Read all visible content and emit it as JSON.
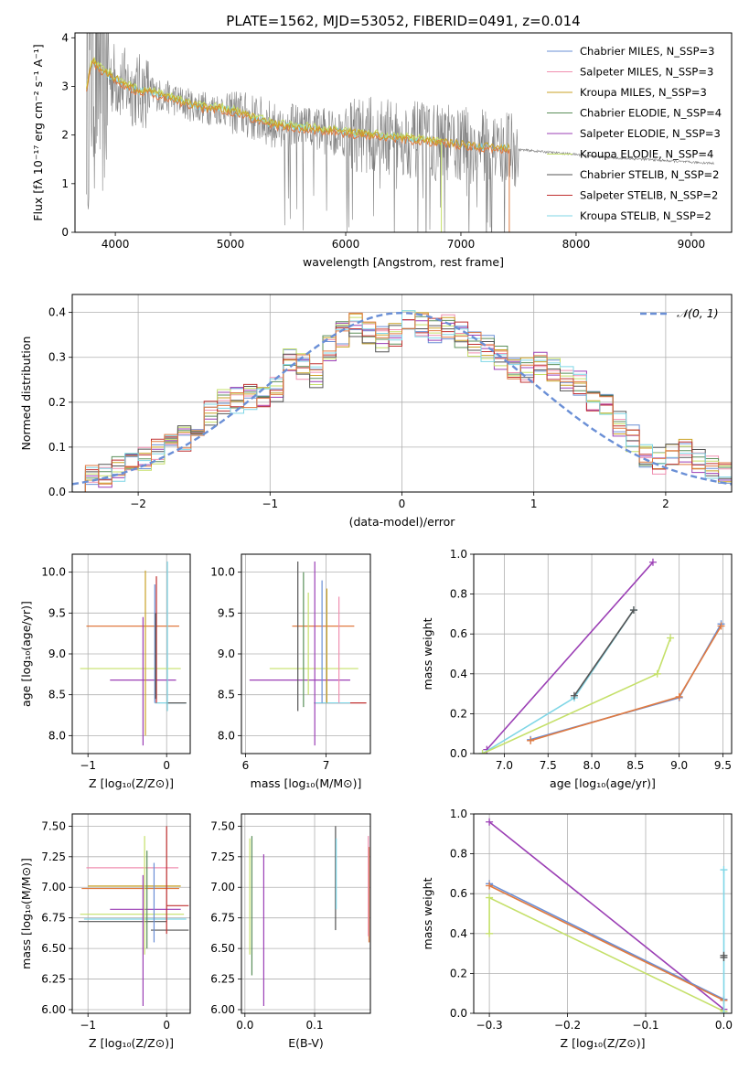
{
  "colors": {
    "c0": "#6a8fd6",
    "c1": "#f08fb0",
    "c2": "#c9a226",
    "c3": "#5b8f5a",
    "c4": "#9b3fb5",
    "c5": "#c5e06a",
    "c6": "#555555",
    "c7": "#c03030",
    "c8": "#7fd6e6",
    "data": "#808080",
    "gauss": "#6a8fd6",
    "orange": "#e07a40"
  },
  "chart_data": [
    {
      "id": "spectrum",
      "type": "line",
      "title": "PLATE=1562, MJD=53052, FIBERID=0491, z=0.014",
      "xlabel": "wavelength [Angstrom, rest frame]",
      "ylabel": "Flux [fλ 10⁻¹⁷ erg cm⁻² s⁻¹ A⁻¹]",
      "xlim": [
        3650,
        9350
      ],
      "ylim": [
        0,
        4.1
      ],
      "xticks": [
        4000,
        5000,
        6000,
        7000,
        8000,
        9000
      ],
      "yticks": [
        0,
        1,
        2,
        3,
        4
      ],
      "legend_position": "top-right",
      "legend": [
        {
          "label": "Chabrier MILES, N_SSP=3",
          "color": "c0"
        },
        {
          "label": "Salpeter MILES, N_SSP=3",
          "color": "c1"
        },
        {
          "label": "Kroupa MILES, N_SSP=3",
          "color": "c2"
        },
        {
          "label": "Chabrier ELODIE, N_SSP=4",
          "color": "c3"
        },
        {
          "label": "Salpeter ELODIE, N_SSP=3",
          "color": "c4"
        },
        {
          "label": "Kroupa ELODIE, N_SSP=4",
          "color": "c5"
        },
        {
          "label": "Chabrier STELIB, N_SSP=2",
          "color": "c6"
        },
        {
          "label": "Salpeter STELIB, N_SSP=2",
          "color": "c7"
        },
        {
          "label": "Kroupa STELIB, N_SSP=2",
          "color": "c8"
        }
      ],
      "continuum": [
        [
          3750,
          3.0
        ],
        [
          3800,
          3.5
        ],
        [
          3900,
          3.3
        ],
        [
          4000,
          3.15
        ],
        [
          4100,
          3.0
        ],
        [
          4200,
          2.9
        ],
        [
          4300,
          2.9
        ],
        [
          4400,
          2.8
        ],
        [
          4500,
          2.75
        ],
        [
          4600,
          2.65
        ],
        [
          4700,
          2.6
        ],
        [
          4800,
          2.55
        ],
        [
          4900,
          2.55
        ],
        [
          5000,
          2.5
        ],
        [
          5200,
          2.35
        ],
        [
          5400,
          2.2
        ],
        [
          5600,
          2.15
        ],
        [
          5800,
          2.1
        ],
        [
          6000,
          2.05
        ],
        [
          6200,
          2.0
        ],
        [
          6400,
          1.95
        ],
        [
          6600,
          1.9
        ],
        [
          6800,
          1.85
        ],
        [
          7000,
          1.8
        ],
        [
          7200,
          1.75
        ],
        [
          7400,
          1.72
        ],
        [
          7600,
          1.68
        ],
        [
          7800,
          1.64
        ],
        [
          8000,
          1.6
        ],
        [
          8200,
          1.55
        ],
        [
          8400,
          1.52
        ],
        [
          8600,
          1.5
        ],
        [
          8800,
          1.47
        ],
        [
          9000,
          1.44
        ],
        [
          9200,
          1.42
        ]
      ]
    },
    {
      "id": "residuals",
      "type": "line",
      "xlabel": "(data-model)/error",
      "ylabel": "Normed distribution",
      "xlim": [
        -2.5,
        2.5
      ],
      "ylim": [
        0,
        0.44
      ],
      "xticks": [
        -2,
        -1,
        0,
        1,
        2
      ],
      "yticks": [
        0.0,
        0.1,
        0.2,
        0.3,
        0.4
      ],
      "grid": true,
      "legend_position": "top-right",
      "legend": [
        {
          "label": "𝒩(0, 1)",
          "color": "gauss"
        }
      ],
      "hist_bins": [
        -2.5,
        2.5,
        50
      ],
      "hist_base": [
        0.02,
        0.03,
        0.04,
        0.05,
        0.06,
        0.075,
        0.09,
        0.1,
        0.12,
        0.145,
        0.175,
        0.2,
        0.205,
        0.21,
        0.22,
        0.23,
        0.3,
        0.28,
        0.26,
        0.32,
        0.35,
        0.37,
        0.36,
        0.34,
        0.35,
        0.38,
        0.37,
        0.36,
        0.37,
        0.35,
        0.33,
        0.32,
        0.3,
        0.28,
        0.27,
        0.29,
        0.27,
        0.25,
        0.24,
        0.2,
        0.19,
        0.15,
        0.12,
        0.08,
        0.07,
        0.085,
        0.09,
        0.07,
        0.05,
        0.045
      ]
    },
    {
      "id": "age-vs-Z",
      "type": "scatter",
      "xlabel": "Z [log₁₀(Z/Z⊙)]",
      "ylabel": "age  [log₁₀(age/yr)]",
      "xlim": [
        -1.2,
        0.3
      ],
      "ylim": [
        7.78,
        10.22
      ],
      "xticks": [
        -1,
        0
      ],
      "yticks": [
        8.0,
        8.5,
        9.0,
        9.5,
        10.0
      ],
      "grid": true,
      "hbars": [
        {
          "y": 9.34,
          "x0": -1.02,
          "x1": 0.16,
          "color": "orange"
        },
        {
          "y": 8.82,
          "x0": -1.1,
          "x1": 0.18,
          "color": "c5"
        },
        {
          "y": 8.4,
          "x0": -0.15,
          "x1": 0.25,
          "color": "c8"
        },
        {
          "y": 8.68,
          "x0": -0.72,
          "x1": 0.12,
          "color": "c4"
        },
        {
          "y": 8.4,
          "x0": 0.0,
          "x1": 0.25,
          "color": "c6"
        }
      ],
      "vbars": [
        {
          "x": -0.3,
          "y0": 7.88,
          "y1": 9.45,
          "color": "c4"
        },
        {
          "x": -0.27,
          "y0": 8.0,
          "y1": 10.02,
          "color": "c2"
        },
        {
          "x": -0.15,
          "y0": 8.4,
          "y1": 9.85,
          "color": "c0"
        },
        {
          "x": -0.13,
          "y0": 8.4,
          "y1": 9.95,
          "color": "c7"
        },
        {
          "x": 0.01,
          "y0": 8.3,
          "y1": 10.13,
          "color": "c8"
        },
        {
          "x": -0.14,
          "y0": 8.45,
          "y1": 9.5,
          "color": "c6"
        }
      ]
    },
    {
      "id": "age-vs-mass",
      "type": "scatter",
      "xlabel": "mass [log₁₀(M/M⊙)]",
      "ylabel": "",
      "xlim": [
        5.95,
        7.55
      ],
      "ylim": [
        7.78,
        10.22
      ],
      "xticks": [
        6,
        7
      ],
      "yticks": [
        8.0,
        8.5,
        9.0,
        9.5,
        10.0
      ],
      "grid": true,
      "hbars": [
        {
          "y": 9.34,
          "x0": 6.58,
          "x1": 7.35,
          "color": "orange"
        },
        {
          "y": 8.82,
          "x0": 6.3,
          "x1": 7.4,
          "color": "c5"
        },
        {
          "y": 8.68,
          "x0": 6.05,
          "x1": 7.3,
          "color": "c4"
        },
        {
          "y": 8.4,
          "x0": 6.85,
          "x1": 7.5,
          "color": "c7"
        },
        {
          "y": 8.4,
          "x0": 6.85,
          "x1": 7.3,
          "color": "c8"
        }
      ],
      "vbars": [
        {
          "x": 6.65,
          "y0": 8.3,
          "y1": 10.13,
          "color": "c6"
        },
        {
          "x": 6.72,
          "y0": 8.35,
          "y1": 10.0,
          "color": "c3"
        },
        {
          "x": 6.78,
          "y0": 8.5,
          "y1": 9.75,
          "color": "c5"
        },
        {
          "x": 6.86,
          "y0": 7.88,
          "y1": 10.13,
          "color": "c4"
        },
        {
          "x": 6.95,
          "y0": 8.4,
          "y1": 9.9,
          "color": "c0"
        },
        {
          "x": 7.01,
          "y0": 8.4,
          "y1": 9.8,
          "color": "c2"
        },
        {
          "x": 7.16,
          "y0": 8.4,
          "y1": 9.7,
          "color": "c1"
        }
      ]
    },
    {
      "id": "mass-weight-vs-age",
      "type": "line",
      "xlabel": "age  [log₁₀(age/yr)]",
      "ylabel": "mass weight",
      "xlim": [
        6.65,
        9.6
      ],
      "ylim": [
        0,
        1.0
      ],
      "xticks": [
        7.0,
        7.5,
        8.0,
        8.5,
        9.0,
        9.5
      ],
      "yticks": [
        0.0,
        0.2,
        0.4,
        0.6,
        0.8,
        1.0
      ],
      "grid": true,
      "series": [
        {
          "color": "c4",
          "x": [
            6.8,
            8.7
          ],
          "y": [
            0.02,
            0.96
          ]
        },
        {
          "color": "c8",
          "x": [
            6.75,
            7.8,
            8.48
          ],
          "y": [
            0.0,
            0.28,
            0.72
          ]
        },
        {
          "color": "c6",
          "x": [
            7.8,
            8.48
          ],
          "y": [
            0.29,
            0.72
          ]
        },
        {
          "color": "c0",
          "x": [
            7.3,
            9.0,
            9.48
          ],
          "y": [
            0.07,
            0.28,
            0.65
          ]
        },
        {
          "color": "orange",
          "x": [
            7.3,
            9.0,
            9.48
          ],
          "y": [
            0.065,
            0.285,
            0.64
          ]
        },
        {
          "color": "c5",
          "x": [
            6.75,
            8.75,
            8.9
          ],
          "y": [
            0.0,
            0.4,
            0.58
          ]
        }
      ]
    },
    {
      "id": "mass-vs-Z",
      "type": "scatter",
      "xlabel": "Z [log₁₀(Z/Z⊙)]",
      "ylabel": "mass [log₁₀(M/M⊙)]",
      "xlim": [
        -1.2,
        0.3
      ],
      "ylim": [
        5.97,
        7.6
      ],
      "xticks": [
        -1,
        0
      ],
      "yticks": [
        6.0,
        6.25,
        6.5,
        6.75,
        7.0,
        7.25,
        7.5
      ],
      "grid": true,
      "hbars": [
        {
          "y": 7.16,
          "x0": -1.02,
          "x1": 0.15,
          "color": "c1"
        },
        {
          "y": 7.01,
          "x0": -1.0,
          "x1": 0.18,
          "color": "c2"
        },
        {
          "y": 6.99,
          "x0": -1.08,
          "x1": 0.16,
          "color": "orange"
        },
        {
          "y": 6.85,
          "x0": 0.0,
          "x1": 0.28,
          "color": "c7"
        },
        {
          "y": 6.82,
          "x0": -0.72,
          "x1": 0.18,
          "color": "c4"
        },
        {
          "y": 6.78,
          "x0": -1.1,
          "x1": 0.22,
          "color": "c5"
        },
        {
          "y": 6.74,
          "x0": -1.05,
          "x1": 0.25,
          "color": "c8"
        },
        {
          "y": 6.72,
          "x0": -1.12,
          "x1": 0.0,
          "color": "c6"
        },
        {
          "y": 6.65,
          "x0": -0.2,
          "x1": 0.28,
          "color": "c6"
        }
      ],
      "vbars": [
        {
          "x": -0.3,
          "y0": 6.03,
          "y1": 7.1,
          "color": "c4"
        },
        {
          "x": -0.28,
          "y0": 6.45,
          "y1": 7.42,
          "color": "c5"
        },
        {
          "x": -0.16,
          "y0": 6.55,
          "y1": 7.2,
          "color": "c0"
        },
        {
          "x": 0.0,
          "y0": 6.62,
          "y1": 7.5,
          "color": "c7"
        },
        {
          "x": -0.25,
          "y0": 6.5,
          "y1": 7.3,
          "color": "c3"
        }
      ]
    },
    {
      "id": "mass-vs-EBV",
      "type": "scatter",
      "xlabel": "E(B-V)",
      "ylabel": "",
      "xlim": [
        -0.005,
        0.18
      ],
      "ylim": [
        5.97,
        7.6
      ],
      "xticks": [
        0.0,
        0.1
      ],
      "yticks": [
        6.0,
        6.25,
        6.5,
        6.75,
        7.0,
        7.25,
        7.5
      ],
      "grid": true,
      "vbars": [
        {
          "x": 0.007,
          "y0": 6.45,
          "y1": 7.4,
          "color": "c5"
        },
        {
          "x": 0.01,
          "y0": 6.28,
          "y1": 7.42,
          "color": "c3"
        },
        {
          "x": 0.027,
          "y0": 6.03,
          "y1": 7.27,
          "color": "c4"
        },
        {
          "x": 0.13,
          "y0": 6.65,
          "y1": 7.5,
          "color": "c6"
        },
        {
          "x": 0.131,
          "y0": 6.82,
          "y1": 7.4,
          "color": "c8"
        },
        {
          "x": 0.178,
          "y0": 6.55,
          "y1": 7.33,
          "color": "orange"
        },
        {
          "x": 0.177,
          "y0": 6.6,
          "y1": 7.42,
          "color": "c1"
        }
      ]
    },
    {
      "id": "mass-weight-vs-Z",
      "type": "line",
      "xlabel": "Z [log₁₀(Z/Z⊙)]",
      "ylabel": "mass weight",
      "xlim": [
        -0.32,
        0.01
      ],
      "ylim": [
        0,
        1.0
      ],
      "xticks": [
        -0.3,
        -0.2,
        -0.1,
        0.0
      ],
      "yticks": [
        0.0,
        0.2,
        0.4,
        0.6,
        0.8,
        1.0
      ],
      "grid": true,
      "series": [
        {
          "color": "c4",
          "x": [
            -0.3,
            0.0
          ],
          "y": [
            0.96,
            0.02
          ]
        },
        {
          "color": "c0",
          "x": [
            -0.3,
            0.0
          ],
          "y": [
            0.65,
            0.07
          ]
        },
        {
          "color": "orange",
          "x": [
            -0.3,
            0.0
          ],
          "y": [
            0.64,
            0.065
          ]
        },
        {
          "color": "c5",
          "x": [
            -0.3,
            -0.3,
            0.0
          ],
          "y": [
            0.4,
            0.58,
            0.01
          ]
        },
        {
          "color": "c8",
          "x": [
            0.0,
            0.0
          ],
          "y": [
            0.0,
            0.72
          ]
        },
        {
          "color": "c6",
          "x": [
            0.0,
            0.0
          ],
          "y": [
            0.29,
            0.28
          ]
        }
      ]
    }
  ]
}
